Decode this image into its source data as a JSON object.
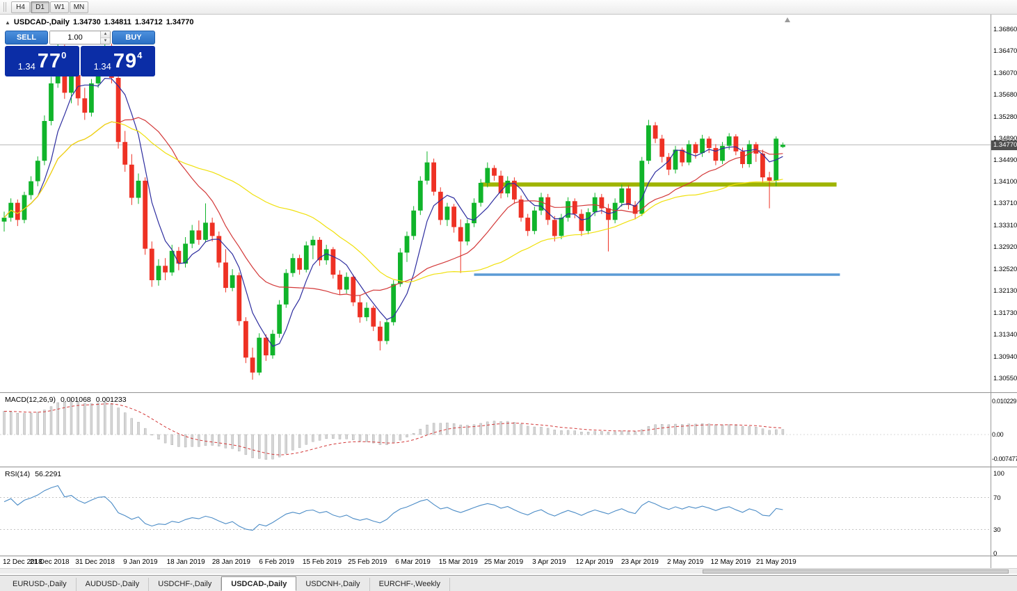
{
  "timeframe_toolbar": {
    "buttons": [
      {
        "label": "H4",
        "active": false
      },
      {
        "label": "D1",
        "active": true
      },
      {
        "label": "W1",
        "active": false
      },
      {
        "label": "MN",
        "active": false
      }
    ]
  },
  "chart_header": {
    "symbol": "USDCAD-,Daily",
    "open": "1.34730",
    "high": "1.34811",
    "low": "1.34712",
    "close": "1.34770"
  },
  "trade_panel": {
    "sell_label": "SELL",
    "buy_label": "BUY",
    "volume": "1.00",
    "sell_price": {
      "big_prefix": "1.34",
      "pips": "77",
      "pip_fraction": "0"
    },
    "buy_price": {
      "big_prefix": "1.34",
      "pips": "79",
      "pip_fraction": "4"
    }
  },
  "chart_data": {
    "type": "candlestick",
    "title": "USDCAD-,Daily",
    "current_price": 1.3477,
    "current_price_label": "1.34770",
    "bull_color": "#10b42a",
    "bear_color": "#ee3124",
    "y_axis_labels": [
      "1.36860",
      "1.36470",
      "1.36070",
      "1.35680",
      "1.35280",
      "1.34890",
      "1.34490",
      "1.34100",
      "1.33710",
      "1.33310",
      "1.32920",
      "1.32520",
      "1.32130",
      "1.31730",
      "1.31340",
      "1.30940",
      "1.30550"
    ],
    "x_labels": [
      "12 Dec 2018",
      "21 Dec 2018",
      "31 Dec 2018",
      "9 Jan 2019",
      "18 Jan 2019",
      "28 Jan 2019",
      "6 Feb 2019",
      "15 Feb 2019",
      "25 Feb 2019",
      "6 Mar 2019",
      "15 Mar 2019",
      "25 Mar 2019",
      "3 Apr 2019",
      "12 Apr 2019",
      "23 Apr 2019",
      "2 May 2019",
      "12 May 2019",
      "21 May 2019"
    ],
    "moving_averages": [
      {
        "name": "fast",
        "period": 6,
        "color": "#2d2d9f"
      },
      {
        "name": "medium",
        "period": 18,
        "color": "#d33838"
      },
      {
        "name": "slow",
        "period": 40,
        "color": "#f0e00a"
      }
    ],
    "hlines": [
      {
        "name": "resistance-line",
        "price": 1.3405,
        "color": "#9fb400",
        "width": 6,
        "start_index": 71,
        "end_index": 124
      },
      {
        "name": "support-line",
        "price": 1.3242,
        "color": "#5b9bd5",
        "width": 3.5,
        "start_index": 70,
        "end_index": 124.5
      }
    ],
    "ohlc": [
      [
        1.3338,
        1.3356,
        1.332,
        1.3345
      ],
      [
        1.3345,
        1.338,
        1.3338,
        1.3372
      ],
      [
        1.3372,
        1.3378,
        1.333,
        1.3341
      ],
      [
        1.3341,
        1.3392,
        1.3335,
        1.3386
      ],
      [
        1.3386,
        1.342,
        1.3378,
        1.3411
      ],
      [
        1.3411,
        1.3456,
        1.3402,
        1.3448
      ],
      [
        1.3448,
        1.353,
        1.344,
        1.352
      ],
      [
        1.352,
        1.36,
        1.3512,
        1.3588
      ],
      [
        1.3588,
        1.3662,
        1.358,
        1.3652
      ],
      [
        1.3652,
        1.3658,
        1.356,
        1.3571
      ],
      [
        1.3571,
        1.3612,
        1.3552,
        1.3603
      ],
      [
        1.3603,
        1.3615,
        1.3548,
        1.3561
      ],
      [
        1.3561,
        1.358,
        1.3522,
        1.3535
      ],
      [
        1.3535,
        1.3596,
        1.3528,
        1.3588
      ],
      [
        1.3588,
        1.3648,
        1.358,
        1.3641
      ],
      [
        1.3641,
        1.3664,
        1.363,
        1.3655
      ],
      [
        1.3655,
        1.366,
        1.3588,
        1.3598
      ],
      [
        1.3598,
        1.361,
        1.347,
        1.3482
      ],
      [
        1.3482,
        1.3502,
        1.3428,
        1.3441
      ],
      [
        1.3441,
        1.346,
        1.3368,
        1.3381
      ],
      [
        1.3381,
        1.3425,
        1.337,
        1.3412
      ],
      [
        1.3412,
        1.3418,
        1.3278,
        1.3289
      ],
      [
        1.3289,
        1.3302,
        1.322,
        1.3232
      ],
      [
        1.3232,
        1.327,
        1.3222,
        1.3258
      ],
      [
        1.3258,
        1.3272,
        1.3232,
        1.3246
      ],
      [
        1.3246,
        1.3296,
        1.324,
        1.3285
      ],
      [
        1.3285,
        1.3292,
        1.325,
        1.3262
      ],
      [
        1.3262,
        1.331,
        1.3255,
        1.3298
      ],
      [
        1.3298,
        1.3332,
        1.329,
        1.3322
      ],
      [
        1.3322,
        1.334,
        1.3296,
        1.3305
      ],
      [
        1.3305,
        1.3371,
        1.33,
        1.3336
      ],
      [
        1.3336,
        1.3345,
        1.3302,
        1.3312
      ],
      [
        1.3312,
        1.332,
        1.3255,
        1.3264
      ],
      [
        1.3264,
        1.3288,
        1.321,
        1.3218
      ],
      [
        1.3218,
        1.3252,
        1.3212,
        1.3241
      ],
      [
        1.3241,
        1.3246,
        1.315,
        1.3158
      ],
      [
        1.3158,
        1.3165,
        1.3082,
        1.3092
      ],
      [
        1.3092,
        1.311,
        1.3052,
        1.3065
      ],
      [
        1.3065,
        1.3136,
        1.306,
        1.3128
      ],
      [
        1.3128,
        1.3134,
        1.3086,
        1.3096
      ],
      [
        1.3096,
        1.3142,
        1.309,
        1.3135
      ],
      [
        1.3135,
        1.3196,
        1.3128,
        1.3188
      ],
      [
        1.3188,
        1.3252,
        1.3182,
        1.3245
      ],
      [
        1.3245,
        1.328,
        1.3238,
        1.3272
      ],
      [
        1.3272,
        1.3278,
        1.3242,
        1.3251
      ],
      [
        1.3251,
        1.3302,
        1.3246,
        1.3295
      ],
      [
        1.3295,
        1.3312,
        1.327,
        1.3305
      ],
      [
        1.3305,
        1.331,
        1.3258,
        1.3268
      ],
      [
        1.3268,
        1.3296,
        1.326,
        1.3288
      ],
      [
        1.3288,
        1.3292,
        1.3235,
        1.3242
      ],
      [
        1.3242,
        1.325,
        1.3205,
        1.3215
      ],
      [
        1.3215,
        1.3246,
        1.3208,
        1.3238
      ],
      [
        1.3238,
        1.3242,
        1.3185,
        1.3192
      ],
      [
        1.3192,
        1.3205,
        1.3155,
        1.3165
      ],
      [
        1.3165,
        1.3192,
        1.3158,
        1.3182
      ],
      [
        1.3182,
        1.3186,
        1.314,
        1.3148
      ],
      [
        1.3148,
        1.3158,
        1.3105,
        1.3122
      ],
      [
        1.3122,
        1.3162,
        1.3116,
        1.3156
      ],
      [
        1.3156,
        1.3232,
        1.315,
        1.3225
      ],
      [
        1.3225,
        1.329,
        1.322,
        1.3282
      ],
      [
        1.3282,
        1.332,
        1.3265,
        1.3312
      ],
      [
        1.3312,
        1.3366,
        1.3305,
        1.3358
      ],
      [
        1.3358,
        1.342,
        1.335,
        1.3412
      ],
      [
        1.3412,
        1.3465,
        1.3405,
        1.3445
      ],
      [
        1.3445,
        1.3452,
        1.3385,
        1.3392
      ],
      [
        1.3392,
        1.34,
        1.3332,
        1.3341
      ],
      [
        1.3341,
        1.3372,
        1.333,
        1.3365
      ],
      [
        1.3365,
        1.337,
        1.3318,
        1.3328
      ],
      [
        1.3328,
        1.3342,
        1.3245,
        1.3302
      ],
      [
        1.3302,
        1.3342,
        1.3295,
        1.3335
      ],
      [
        1.3335,
        1.338,
        1.3328,
        1.3372
      ],
      [
        1.3372,
        1.3415,
        1.3365,
        1.3408
      ],
      [
        1.3408,
        1.3445,
        1.34,
        1.3435
      ],
      [
        1.3435,
        1.344,
        1.3412,
        1.3421
      ],
      [
        1.3421,
        1.343,
        1.338,
        1.3389
      ],
      [
        1.3389,
        1.342,
        1.3382,
        1.3412
      ],
      [
        1.3412,
        1.3418,
        1.337,
        1.3378
      ],
      [
        1.3378,
        1.3385,
        1.3338,
        1.3345
      ],
      [
        1.3345,
        1.3352,
        1.3312,
        1.3321
      ],
      [
        1.3321,
        1.3365,
        1.3315,
        1.3358
      ],
      [
        1.3358,
        1.339,
        1.335,
        1.3382
      ],
      [
        1.3382,
        1.3388,
        1.3332,
        1.3341
      ],
      [
        1.3341,
        1.3348,
        1.3302,
        1.3312
      ],
      [
        1.3312,
        1.3352,
        1.3306,
        1.3345
      ],
      [
        1.3345,
        1.3382,
        1.3338,
        1.3375
      ],
      [
        1.3375,
        1.338,
        1.3344,
        1.3352
      ],
      [
        1.3352,
        1.336,
        1.3312,
        1.3321
      ],
      [
        1.3321,
        1.3362,
        1.3315,
        1.3355
      ],
      [
        1.3355,
        1.339,
        1.3348,
        1.3382
      ],
      [
        1.3382,
        1.3388,
        1.3352,
        1.3362
      ],
      [
        1.3362,
        1.337,
        1.3284,
        1.3341
      ],
      [
        1.3341,
        1.338,
        1.3335,
        1.3372
      ],
      [
        1.3372,
        1.3405,
        1.3365,
        1.3398
      ],
      [
        1.3398,
        1.3404,
        1.336,
        1.3368
      ],
      [
        1.3368,
        1.3375,
        1.3342,
        1.3352
      ],
      [
        1.3352,
        1.3455,
        1.3348,
        1.3448
      ],
      [
        1.3448,
        1.3522,
        1.3442,
        1.3512
      ],
      [
        1.3512,
        1.3518,
        1.348,
        1.3488
      ],
      [
        1.3488,
        1.3495,
        1.3445,
        1.3455
      ],
      [
        1.3455,
        1.3462,
        1.3422,
        1.3432
      ],
      [
        1.3432,
        1.3475,
        1.3425,
        1.3468
      ],
      [
        1.3468,
        1.3472,
        1.3438,
        1.3445
      ],
      [
        1.3445,
        1.3485,
        1.344,
        1.3478
      ],
      [
        1.3478,
        1.3482,
        1.3452,
        1.3462
      ],
      [
        1.3462,
        1.3495,
        1.3455,
        1.3488
      ],
      [
        1.3488,
        1.3492,
        1.3462,
        1.3471
      ],
      [
        1.3471,
        1.3478,
        1.344,
        1.3448
      ],
      [
        1.3448,
        1.3482,
        1.3442,
        1.3475
      ],
      [
        1.3475,
        1.3498,
        1.3468,
        1.3492
      ],
      [
        1.3492,
        1.3496,
        1.3458,
        1.3465
      ],
      [
        1.3465,
        1.3472,
        1.3435,
        1.3442
      ],
      [
        1.3442,
        1.3485,
        1.3436,
        1.3478
      ],
      [
        1.3478,
        1.3482,
        1.3446,
        1.3461
      ],
      [
        1.3461,
        1.3468,
        1.3408,
        1.3418
      ],
      [
        1.3418,
        1.3428,
        1.3362,
        1.3412
      ],
      [
        1.3412,
        1.3492,
        1.3402,
        1.3488
      ],
      [
        1.3473,
        1.34811,
        1.34712,
        1.3477
      ]
    ]
  },
  "macd_panel": {
    "label": "MACD(12,26,9)",
    "value_main": "0.001068",
    "value_signal": "0.001233",
    "axis_labels": [
      "0.010229",
      "0.00",
      "-0.007477"
    ],
    "axis_values": [
      0.010229,
      0,
      -0.007477
    ],
    "histogram_color": "#d6d6d6",
    "signal_color": "#d33838",
    "fast": 12,
    "slow": 26,
    "signal": 9
  },
  "rsi_panel": {
    "label": "RSI(14)",
    "value": "56.2291",
    "period": 14,
    "levels": [
      100,
      70,
      30,
      0
    ],
    "line_color": "#4a8bc6"
  },
  "bottom_tabs": [
    {
      "label": "EURUSD-,Daily",
      "active": false
    },
    {
      "label": "AUDUSD-,Daily",
      "active": false
    },
    {
      "label": "USDCHF-,Daily",
      "active": false
    },
    {
      "label": "USDCAD-,Daily",
      "active": true
    },
    {
      "label": "USDCNH-,Daily",
      "active": false
    },
    {
      "label": "EURCHF-,Weekly",
      "active": false
    }
  ]
}
